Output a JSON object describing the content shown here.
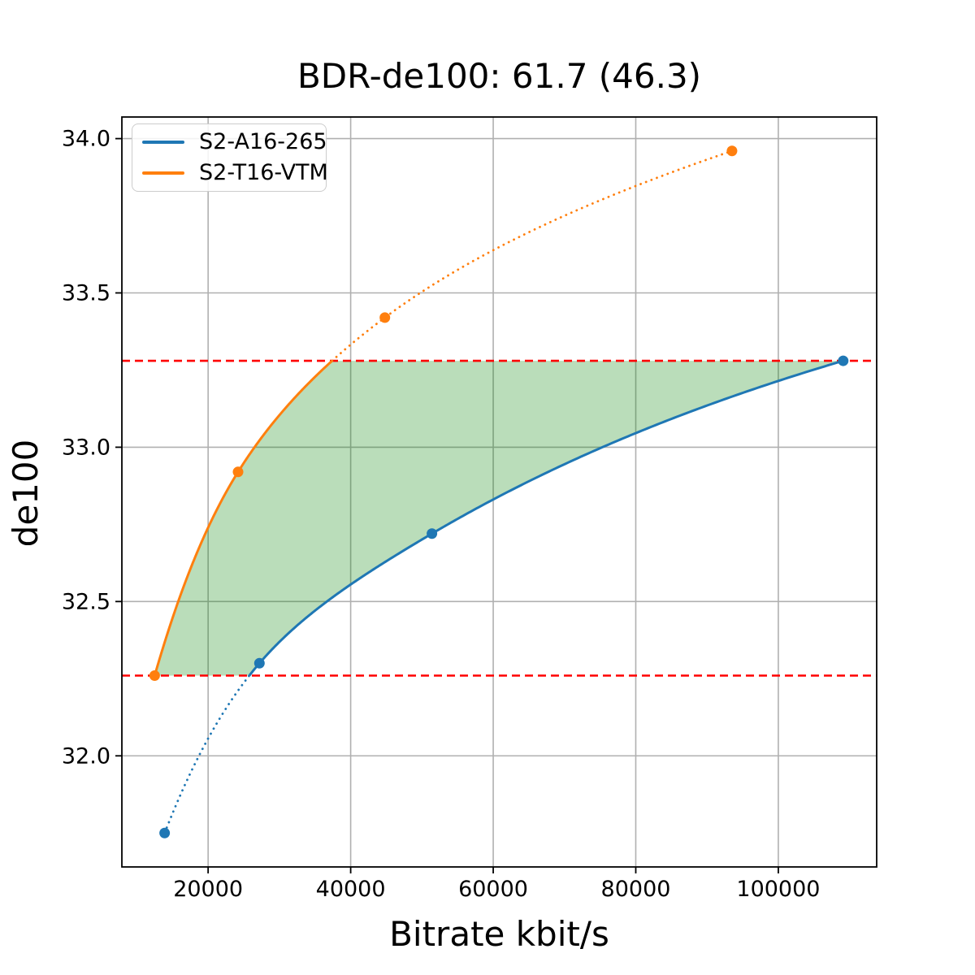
{
  "title": "BDR-de100: 61.7 (46.3)",
  "chart_data": {
    "type": "line",
    "title": "BDR-de100: 61.7 (46.3)",
    "xlabel": "Bitrate kbit/s",
    "ylabel": "de100",
    "xlim": [
      7900,
      113800
    ],
    "ylim": [
      31.64,
      34.07
    ],
    "grid": true,
    "legend_position": "upper left",
    "x_ticks": [
      20000,
      40000,
      60000,
      80000,
      100000
    ],
    "x_tick_labels": [
      "20000",
      "40000",
      "60000",
      "80000",
      "100000"
    ],
    "y_ticks": [
      32.0,
      32.5,
      33.0,
      33.5,
      34.0
    ],
    "y_tick_labels": [
      "32.0",
      "32.5",
      "33.0",
      "33.5",
      "34.0"
    ],
    "series": [
      {
        "name": "S2-A16-265",
        "color": "#1f77b4",
        "x": [
          13900,
          27200,
          51400,
          109100
        ],
        "y": [
          31.75,
          32.3,
          32.72,
          33.28
        ]
      },
      {
        "name": "S2-T16-VTM",
        "color": "#ff7f0e",
        "x": [
          12500,
          24200,
          44800,
          93500
        ],
        "y": [
          32.26,
          32.92,
          33.42,
          33.96
        ]
      }
    ],
    "hlines": [
      {
        "y": 33.28,
        "color": "#ff0000",
        "style": "dashed"
      },
      {
        "y": 32.26,
        "color": "#ff0000",
        "style": "dashed"
      }
    ],
    "shaded_region": {
      "description": "area between the two interpolated curves clipped to the overlap range",
      "y_range": [
        32.26,
        33.28
      ],
      "color": "#008000",
      "alpha": 0.27
    },
    "colors": {
      "grid": "#b0b0b0",
      "spine": "#000000",
      "background": "#ffffff"
    }
  }
}
